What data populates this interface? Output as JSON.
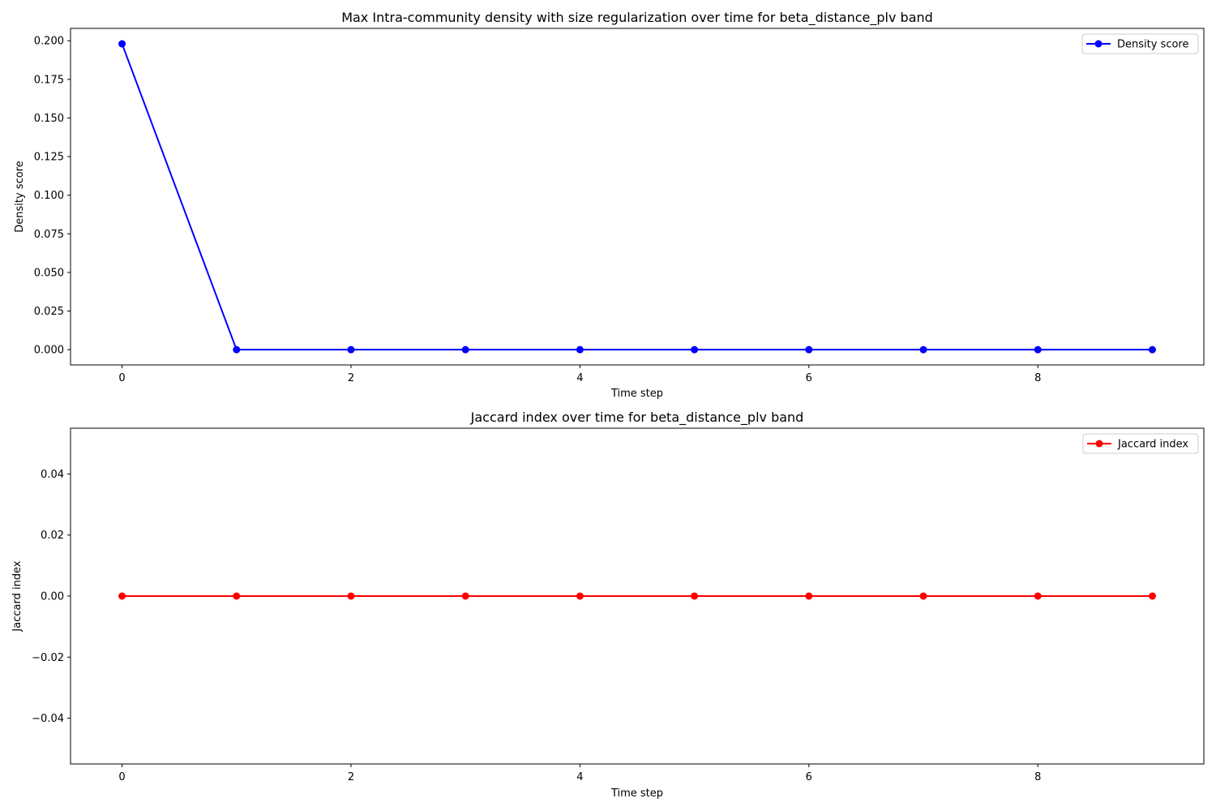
{
  "chart_data": [
    {
      "type": "line",
      "title": "Max Intra-community density with size regularization over time for beta_distance_plv band",
      "xlabel": "Time step",
      "ylabel": "Density score",
      "xlim": [
        -0.45,
        9.45
      ],
      "ylim": [
        -0.0099,
        0.208
      ],
      "xticks": [
        0,
        2,
        4,
        6,
        8
      ],
      "xtick_labels": [
        "0",
        "2",
        "4",
        "6",
        "8"
      ],
      "yticks": [
        0.0,
        0.025,
        0.05,
        0.075,
        0.1,
        0.125,
        0.15,
        0.175,
        0.2
      ],
      "ytick_labels": [
        "0.000",
        "0.025",
        "0.050",
        "0.075",
        "0.100",
        "0.125",
        "0.150",
        "0.175",
        "0.200"
      ],
      "grid": false,
      "legend_position": "top-right",
      "series": [
        {
          "name": "Density score",
          "color": "#0000ff",
          "marker": "circle",
          "x": [
            0,
            1,
            2,
            3,
            4,
            5,
            6,
            7,
            8,
            9
          ],
          "y": [
            0.198,
            0.0,
            0.0,
            0.0,
            0.0,
            0.0,
            0.0,
            0.0,
            0.0,
            0.0
          ]
        }
      ]
    },
    {
      "type": "line",
      "title": "Jaccard index over time for beta_distance_plv band",
      "xlabel": "Time step",
      "ylabel": "Jaccard index",
      "xlim": [
        -0.45,
        9.45
      ],
      "ylim": [
        -0.055,
        0.055
      ],
      "xticks": [
        0,
        2,
        4,
        6,
        8
      ],
      "xtick_labels": [
        "0",
        "2",
        "4",
        "6",
        "8"
      ],
      "yticks": [
        -0.04,
        -0.02,
        0.0,
        0.02,
        0.04
      ],
      "ytick_labels": [
        "−0.04",
        "−0.02",
        "0.00",
        "0.02",
        "0.04"
      ],
      "grid": false,
      "legend_position": "top-right",
      "series": [
        {
          "name": "Jaccard index",
          "color": "#ff0000",
          "marker": "circle",
          "x": [
            0,
            1,
            2,
            3,
            4,
            5,
            6,
            7,
            8,
            9
          ],
          "y": [
            0,
            0,
            0,
            0,
            0,
            0,
            0,
            0,
            0,
            0
          ]
        }
      ]
    }
  ]
}
